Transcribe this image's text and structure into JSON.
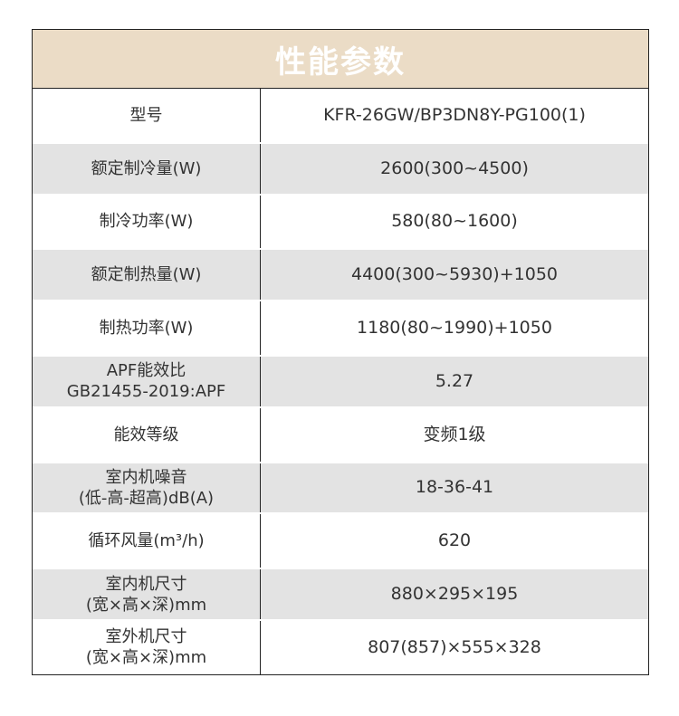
{
  "title": "性能参数",
  "rows": [
    {
      "label": "型号",
      "value": "KFR-26GW/BP3DN8Y-PG100(1)"
    },
    {
      "label": "额定制冷量(W)",
      "value": "2600(300~4500)"
    },
    {
      "label": "制冷功率(W)",
      "value": "580(80~1600)"
    },
    {
      "label": "额定制热量(W)",
      "value": "4400(300~5930)+1050"
    },
    {
      "label": "制热功率(W)",
      "value": "1180(80~1990)+1050"
    },
    {
      "label": "APF能效比\nGB21455-2019:APF",
      "value": "5.27"
    },
    {
      "label": "能效等级",
      "value": "变频1级"
    },
    {
      "label": "室内机噪音\n(低-高-超高)dB(A)",
      "value": "18-36-41"
    },
    {
      "label": "循环风量(m³/h)",
      "value": "620"
    },
    {
      "label": "室内机尺寸\n(宽×高×深)mm",
      "value": "880×295×195"
    },
    {
      "label": "室外机尺寸\n(宽×高×深)mm",
      "value": "807(857)×555×328"
    }
  ],
  "colors": {
    "header_bg": "#ebdcc6",
    "stripe_bg": "#e3e3e3",
    "border": "#222222"
  }
}
